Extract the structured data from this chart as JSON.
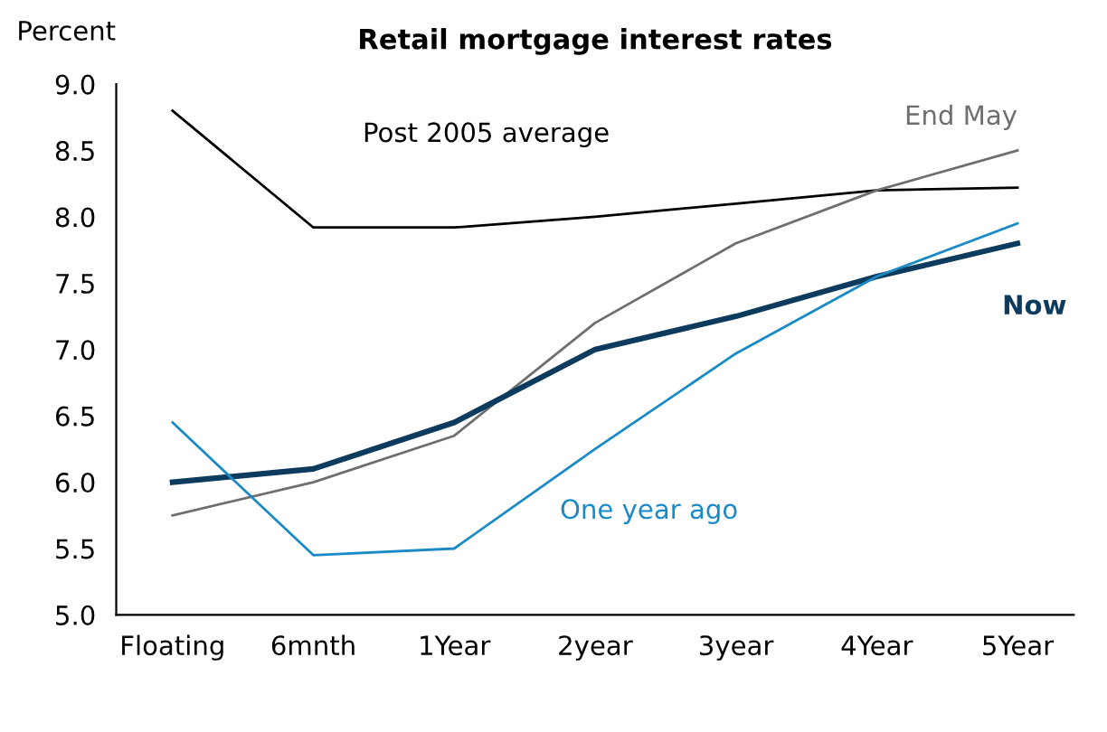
{
  "chart_data": {
    "type": "line",
    "title": "Retail mortgage interest rates",
    "ylabel": "Percent",
    "categories": [
      "Floating",
      "6mnth",
      "1Year",
      "2year",
      "3year",
      "4Year",
      "5Year"
    ],
    "series": [
      {
        "name": "Post 2005 average",
        "color": "#000000",
        "values": [
          8.8,
          7.92,
          7.92,
          8.0,
          8.1,
          8.2,
          8.22
        ]
      },
      {
        "name": "End May",
        "color": "#6e6e6e",
        "values": [
          5.75,
          6.0,
          6.35,
          7.2,
          7.8,
          8.2,
          8.5
        ]
      },
      {
        "name": "Now",
        "color": "#0d3b5e",
        "values": [
          6.0,
          6.1,
          6.45,
          7.0,
          7.25,
          7.55,
          7.8
        ]
      },
      {
        "name": "One year ago",
        "color": "#1a8ac6",
        "values": [
          6.45,
          5.45,
          5.5,
          6.25,
          6.97,
          7.55,
          7.95
        ]
      }
    ],
    "ylim": [
      5.0,
      9.0
    ],
    "yticks": [
      {
        "value": 5.0,
        "label": "5.0"
      },
      {
        "value": 5.5,
        "label": "5.5"
      },
      {
        "value": 6.0,
        "label": "6.0"
      },
      {
        "value": 6.5,
        "label": "6.5"
      },
      {
        "value": 7.0,
        "label": "7.0"
      },
      {
        "value": 7.5,
        "label": "7.5"
      },
      {
        "value": 8.0,
        "label": "8.0"
      },
      {
        "value": 8.5,
        "label": "8.5"
      },
      {
        "value": 9.0,
        "label": "9.0"
      }
    ],
    "grid": false,
    "legend": false,
    "marker": "none",
    "line_style": "solid"
  }
}
